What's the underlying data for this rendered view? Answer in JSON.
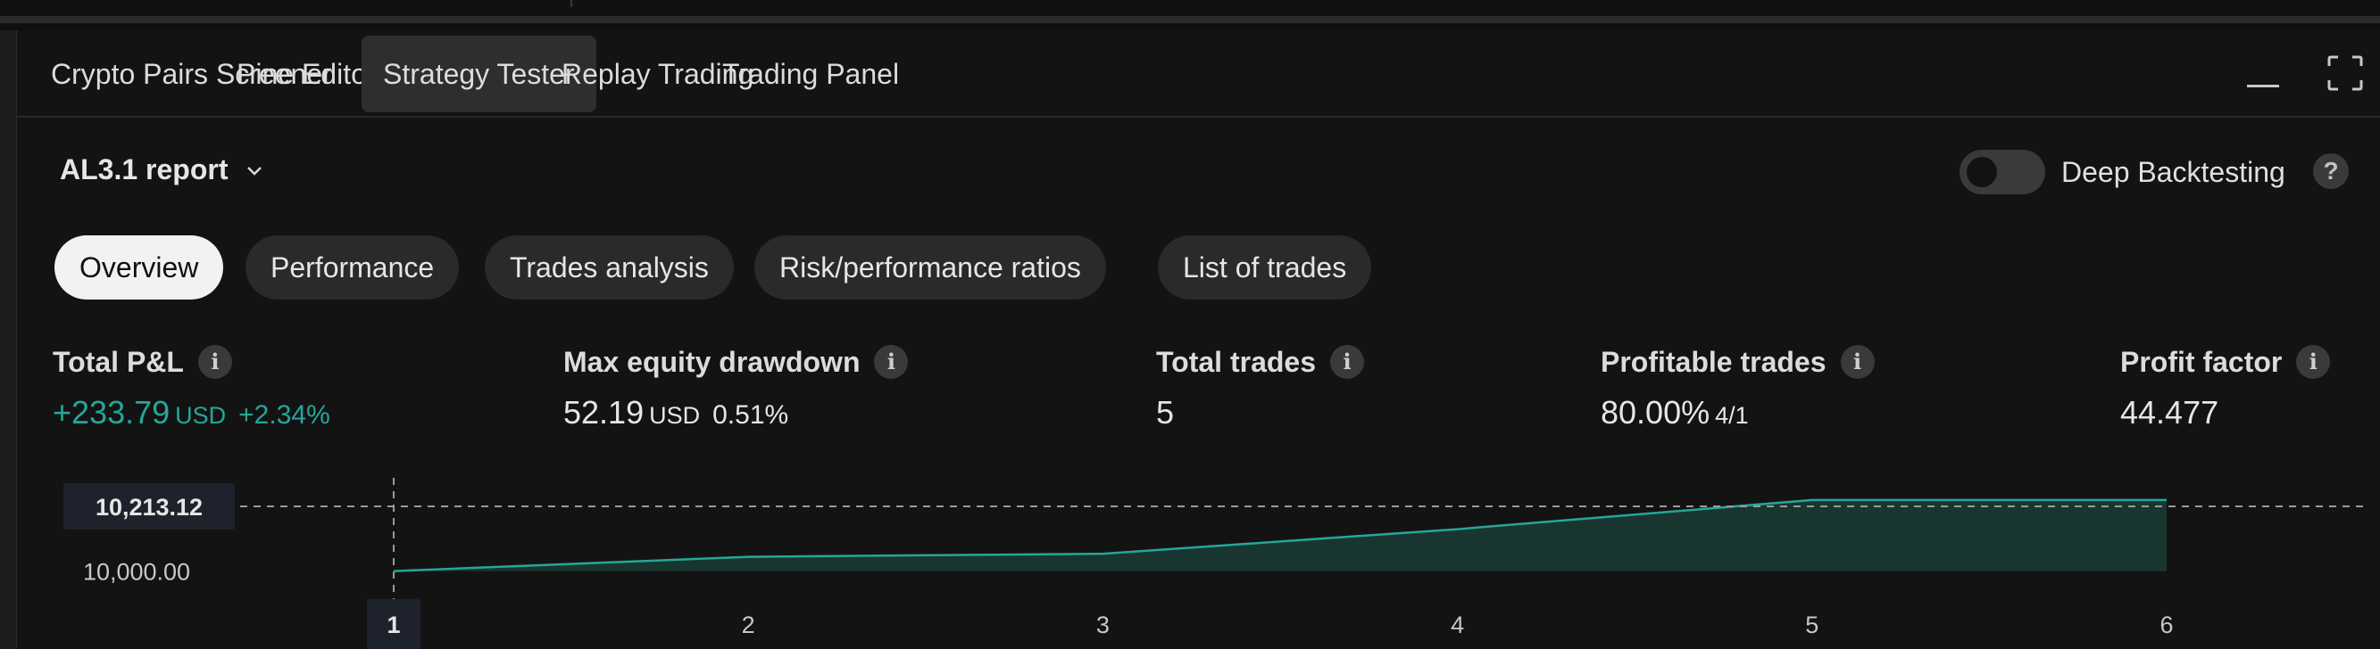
{
  "tabs": [
    {
      "label": "Crypto Pairs Screener",
      "active": false
    },
    {
      "label": "Pine Editor",
      "active": false
    },
    {
      "label": "Strategy Tester",
      "active": true
    },
    {
      "label": "Replay Trading",
      "active": false
    },
    {
      "label": "Trading Panel",
      "active": false
    }
  ],
  "window_controls": {
    "minimize_icon": "minimize-icon",
    "maximize_icon": "maximize-icon"
  },
  "report": {
    "title": "AL3.1 report",
    "dropdown_icon": "chevron-down-icon"
  },
  "deep_backtesting": {
    "label": "Deep Backtesting",
    "enabled": false,
    "help_icon": "question-icon",
    "help_glyph": "?"
  },
  "report_tabs": [
    {
      "label": "Overview",
      "active": true
    },
    {
      "label": "Performance",
      "active": false
    },
    {
      "label": "Trades analysis",
      "active": false
    },
    {
      "label": "Risk/performance ratios",
      "active": false
    },
    {
      "label": "List of trades",
      "active": false
    }
  ],
  "info_glyph": "i",
  "metrics": {
    "total_pnl": {
      "label": "Total P&L",
      "value": "+233.79",
      "unit": "USD",
      "percent": "+2.34%"
    },
    "max_drawdown": {
      "label": "Max equity drawdown",
      "value": "52.19",
      "unit": "USD",
      "percent": "0.51%"
    },
    "total_trades": {
      "label": "Total trades",
      "value": "5"
    },
    "profitable_trades": {
      "label": "Profitable trades",
      "value": "80.00%",
      "ratio": "4/1"
    },
    "profit_factor": {
      "label": "Profit factor",
      "value": "44.477"
    }
  },
  "colors": {
    "positive": "#26a69a",
    "accent_fill": "#1a3d35",
    "background": "#131313"
  },
  "chart_data": {
    "type": "area",
    "x": [
      1,
      2,
      3,
      4,
      5,
      6
    ],
    "x_tick_labels": [
      "1",
      "2",
      "3",
      "4",
      "5",
      "6"
    ],
    "y_tick_labels": [
      "10,000.00"
    ],
    "crosshair_x_label": "1",
    "crosshair_y_label": "10,213.12",
    "crosshair_y_value": 10213.12,
    "series": [
      {
        "values": [
          10000.0,
          10047.0,
          10057.0,
          10138.0,
          10233.79,
          10233.79
        ]
      }
    ],
    "ylim": [
      9990,
      10260
    ],
    "xlim": [
      1,
      6
    ],
    "grid": false
  }
}
